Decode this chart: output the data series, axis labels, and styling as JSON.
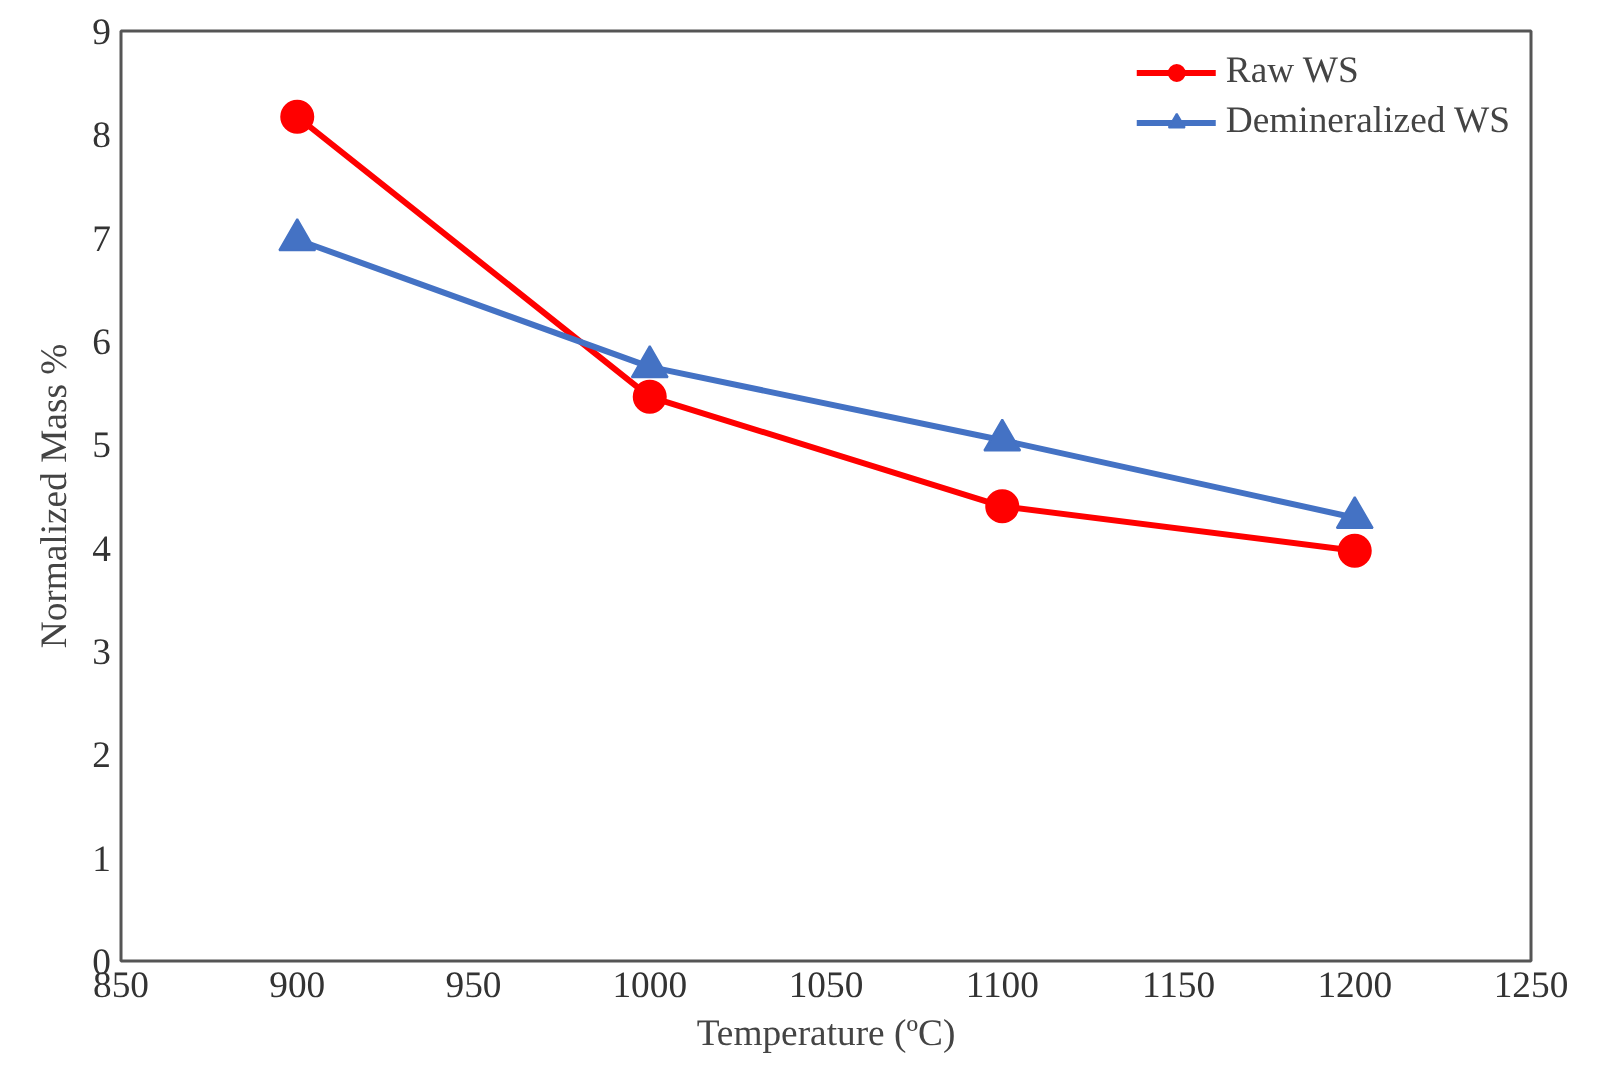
{
  "chart_data": {
    "type": "line",
    "xlabel": "Temperature (ºC)",
    "ylabel": "Normalized Mass %",
    "x": [
      900,
      1000,
      1100,
      1200
    ],
    "series": [
      {
        "name": "Raw WS",
        "color": "#ff0000",
        "marker": "circle",
        "values": [
          8.17,
          5.46,
          4.4,
          3.97
        ]
      },
      {
        "name": "Demineralized WS",
        "color": "#4472c4",
        "marker": "triangle",
        "values": [
          6.98,
          5.75,
          5.04,
          4.29
        ]
      }
    ],
    "xlim": [
      850,
      1250
    ],
    "xticks": [
      850,
      900,
      950,
      1000,
      1050,
      1100,
      1150,
      1200,
      1250
    ],
    "ylim": [
      0,
      9
    ],
    "yticks": [
      0,
      1,
      2,
      3,
      4,
      5,
      6,
      7,
      8,
      9
    ],
    "grid": false,
    "legend": "top right"
  }
}
